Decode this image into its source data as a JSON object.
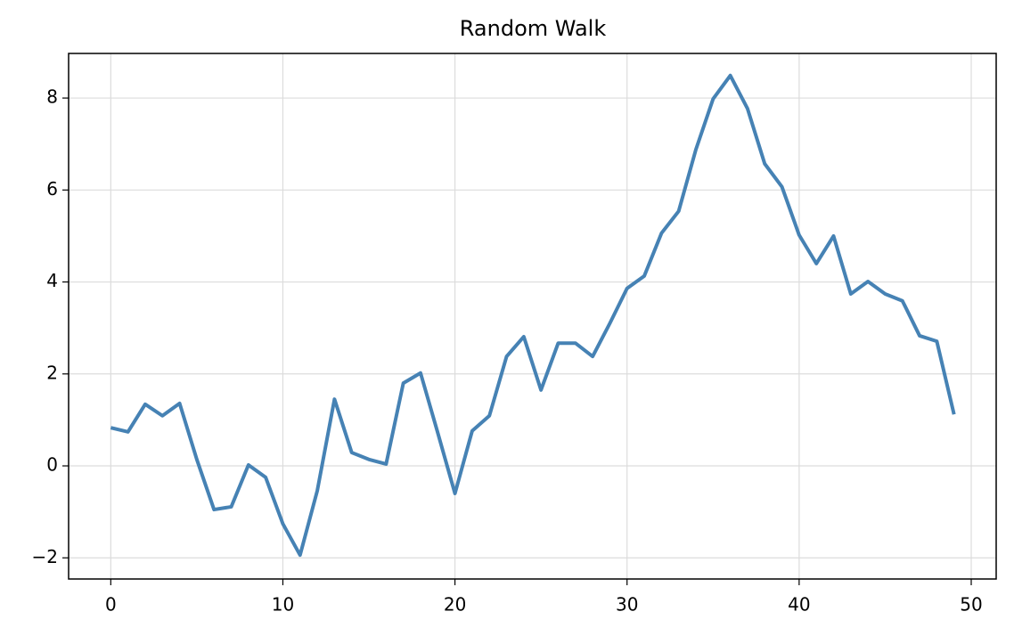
{
  "chart_data": {
    "type": "line",
    "title": "Random Walk",
    "x": [
      0,
      1,
      2,
      3,
      4,
      5,
      6,
      7,
      8,
      9,
      10,
      11,
      12,
      13,
      14,
      15,
      16,
      17,
      18,
      19,
      20,
      21,
      22,
      23,
      24,
      25,
      26,
      27,
      28,
      29,
      30,
      31,
      32,
      33,
      34,
      35,
      36,
      37,
      38,
      39,
      40,
      41,
      42,
      43,
      44,
      45,
      46,
      47,
      48,
      49
    ],
    "series": [
      {
        "color": "#4682b4",
        "values": [
          0.83,
          0.74,
          1.34,
          1.09,
          1.36,
          0.14,
          -0.95,
          -0.89,
          0.02,
          -0.25,
          -1.26,
          -1.94,
          -0.54,
          1.45,
          0.29,
          0.14,
          0.04,
          1.8,
          2.02,
          0.72,
          -0.6,
          0.76,
          1.09,
          2.38,
          2.81,
          1.65,
          2.67,
          2.67,
          2.38,
          3.1,
          3.86,
          4.13,
          5.06,
          5.54,
          6.88,
          7.98,
          8.49,
          7.77,
          6.57,
          6.07,
          5.02,
          4.4,
          5.0,
          3.74,
          4.01,
          3.74,
          3.59,
          2.83,
          2.71,
          1.12
        ]
      }
    ],
    "xlim": [
      -2.45,
      51.45
    ],
    "xticks": [
      0,
      10,
      20,
      30,
      40,
      50
    ],
    "ylim": [
      -2.46,
      8.97
    ],
    "yticks": [
      {
        "value": -2,
        "label": "−2"
      },
      0,
      2,
      4,
      6,
      8
    ],
    "grid": true
  }
}
